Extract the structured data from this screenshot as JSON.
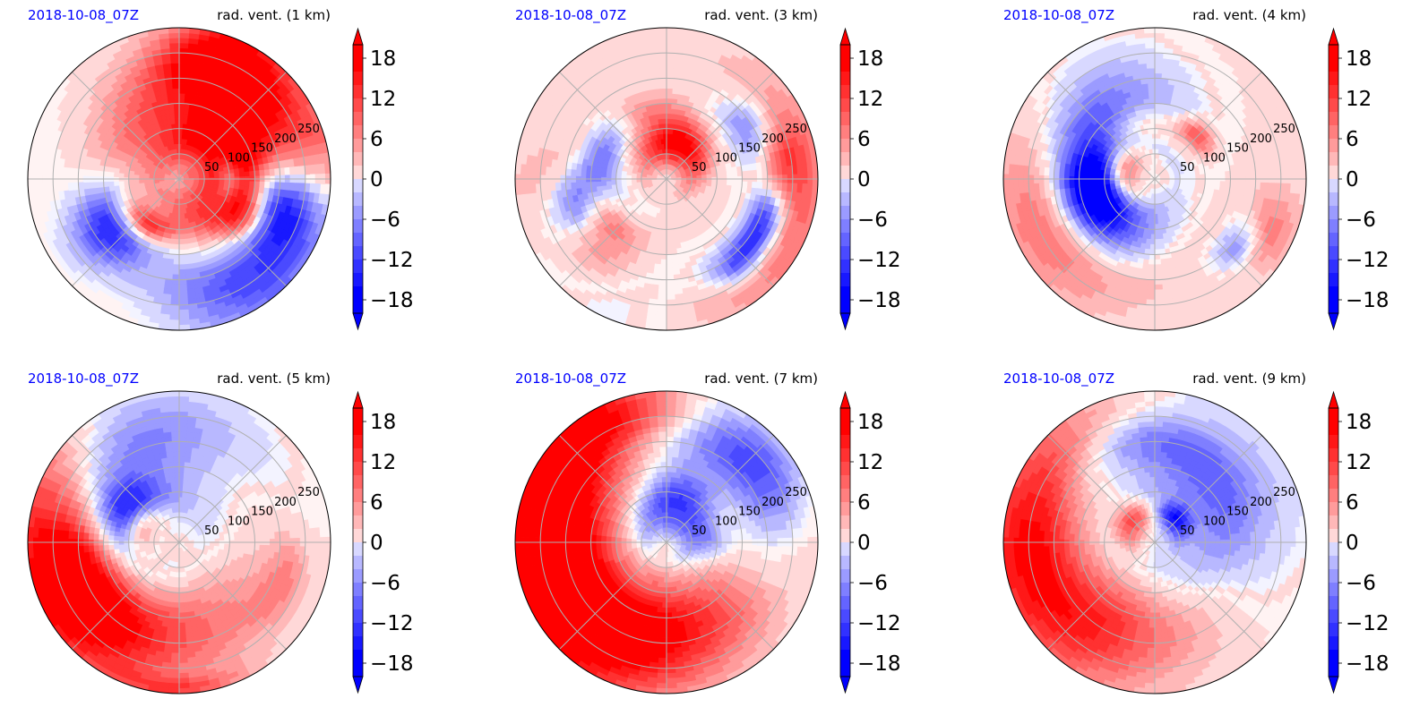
{
  "colors": {
    "date_label": "#0000ff",
    "positive": "#ff0000",
    "negative": "#0000ff",
    "neutral": "#ffffff",
    "grid": "#b0b0b0",
    "border": "#000000"
  },
  "colorbar": {
    "levels": [
      -20,
      -18,
      -16,
      -14,
      -12,
      -10,
      -8,
      -6,
      -4,
      -2,
      0,
      2,
      4,
      6,
      8,
      10,
      12,
      14,
      16,
      18,
      20
    ],
    "ticks": [
      -18,
      -12,
      -6,
      0,
      6,
      12,
      18
    ],
    "tick_labels": [
      "−18",
      "−12",
      "−6",
      "0",
      "6",
      "12",
      "18"
    ],
    "extend": "both"
  },
  "chart_data": [
    {
      "type": "polar-filled-contour",
      "date_label": "2018-10-08_07Z",
      "title": "rad. vent. (1 km)",
      "range_labels": [
        "50",
        "100",
        "150",
        "200",
        "250"
      ],
      "range_rings": [
        50,
        100,
        150,
        200,
        250
      ],
      "rmax": 300,
      "blobs": [
        {
          "az": 55,
          "r": 180,
          "sr": 110,
          "st": 40,
          "v": 18
        },
        {
          "az": 80,
          "r": 110,
          "sr": 45,
          "st": 25,
          "v": 16
        },
        {
          "az": 20,
          "r": 250,
          "sr": 50,
          "st": 10,
          "v": 14
        },
        {
          "az": 135,
          "r": 230,
          "sr": 70,
          "st": 20,
          "v": -18
        },
        {
          "az": 105,
          "r": 200,
          "sr": 60,
          "st": 10,
          "v": -16
        },
        {
          "az": 235,
          "r": 160,
          "sr": 55,
          "st": 12,
          "v": -16
        },
        {
          "az": 232,
          "r": 120,
          "sr": 25,
          "st": 10,
          "v": 10
        },
        {
          "az": 120,
          "r": 150,
          "sr": 30,
          "st": 8,
          "v": 12
        },
        {
          "az": 210,
          "r": 110,
          "sr": 20,
          "st": 10,
          "v": 12
        },
        {
          "az": 90,
          "r": 100,
          "sr": 20,
          "st": 12,
          "v": -14
        },
        {
          "az": 300,
          "r": 150,
          "sr": 160,
          "st": 70,
          "v": -0.8
        }
      ],
      "base": 0.9
    },
    {
      "type": "polar-filled-contour",
      "date_label": "2018-10-08_07Z",
      "title": "rad. vent. (3 km)",
      "range_labels": [
        "50",
        "100",
        "150",
        "200",
        "250"
      ],
      "range_rings": [
        50,
        100,
        150,
        200,
        250
      ],
      "rmax": 300,
      "blobs": [
        {
          "az": 20,
          "r": 70,
          "sr": 30,
          "st": 25,
          "v": 16
        },
        {
          "az": 340,
          "r": 120,
          "sr": 35,
          "st": 20,
          "v": 10
        },
        {
          "az": 255,
          "r": 170,
          "sr": 50,
          "st": 10,
          "v": -16
        },
        {
          "az": 240,
          "r": 140,
          "sr": 30,
          "st": 12,
          "v": 12
        },
        {
          "az": 300,
          "r": 130,
          "sr": 30,
          "st": 15,
          "v": -12
        },
        {
          "az": 105,
          "r": 275,
          "sr": 40,
          "st": 25,
          "v": 8
        },
        {
          "az": 115,
          "r": 210,
          "sr": 25,
          "st": 8,
          "v": -16
        },
        {
          "az": 80,
          "r": 230,
          "sr": 35,
          "st": 8,
          "v": 8
        },
        {
          "az": 60,
          "r": 190,
          "sr": 30,
          "st": 8,
          "v": -10
        },
        {
          "az": 140,
          "r": 220,
          "sr": 25,
          "st": 6,
          "v": -12
        },
        {
          "az": 265,
          "r": 220,
          "sr": 60,
          "st": 10,
          "v": 5
        },
        {
          "az": 225,
          "r": 200,
          "sr": 40,
          "st": 10,
          "v": 6
        },
        {
          "az": 200,
          "r": 250,
          "sr": 60,
          "st": 15,
          "v": -3
        }
      ],
      "base": 1.2
    },
    {
      "type": "polar-filled-contour",
      "date_label": "2018-10-08_07Z",
      "title": "rad. vent. (4 km)",
      "range_labels": [
        "50",
        "100",
        "150",
        "200",
        "250"
      ],
      "range_rings": [
        50,
        100,
        150,
        200,
        250
      ],
      "rmax": 300,
      "blobs": [
        {
          "az": 290,
          "r": 140,
          "sr": 60,
          "st": 30,
          "v": -12
        },
        {
          "az": 260,
          "r": 120,
          "sr": 40,
          "st": 15,
          "v": -16
        },
        {
          "az": 330,
          "r": 200,
          "sr": 60,
          "st": 20,
          "v": -6
        },
        {
          "az": 285,
          "r": 65,
          "sr": 25,
          "st": 18,
          "v": 14
        },
        {
          "az": 345,
          "r": 110,
          "sr": 30,
          "st": 18,
          "v": 8
        },
        {
          "az": 250,
          "r": 240,
          "sr": 60,
          "st": 22,
          "v": 8
        },
        {
          "az": 115,
          "r": 250,
          "sr": 40,
          "st": 8,
          "v": 7
        },
        {
          "az": 130,
          "r": 210,
          "sr": 25,
          "st": 6,
          "v": -10
        },
        {
          "az": 45,
          "r": 120,
          "sr": 20,
          "st": 8,
          "v": 12
        },
        {
          "az": 215,
          "r": 140,
          "sr": 40,
          "st": 15,
          "v": -6
        }
      ],
      "base": 1.2
    },
    {
      "type": "polar-filled-contour",
      "date_label": "2018-10-08_07Z",
      "title": "rad. vent. (5 km)",
      "range_labels": [
        "50",
        "100",
        "150",
        "200",
        "250"
      ],
      "range_rings": [
        50,
        100,
        150,
        200,
        250
      ],
      "rmax": 300,
      "blobs": [
        {
          "az": 268,
          "r": 235,
          "sr": 85,
          "st": 38,
          "v": 20
        },
        {
          "az": 245,
          "r": 200,
          "sr": 60,
          "st": 15,
          "v": 10
        },
        {
          "az": 320,
          "r": 180,
          "sr": 80,
          "st": 25,
          "v": -16
        },
        {
          "az": 300,
          "r": 120,
          "sr": 40,
          "st": 15,
          "v": -14
        },
        {
          "az": 340,
          "r": 250,
          "sr": 60,
          "st": 20,
          "v": -6
        },
        {
          "az": 15,
          "r": 220,
          "sr": 60,
          "st": 25,
          "v": -4
        },
        {
          "az": 290,
          "r": 80,
          "sr": 25,
          "st": 15,
          "v": 12
        },
        {
          "az": 110,
          "r": 220,
          "sr": 30,
          "st": 10,
          "v": 6
        },
        {
          "az": 180,
          "r": 290,
          "sr": 15,
          "st": 10,
          "v": 8
        }
      ],
      "base": 1.0
    },
    {
      "type": "polar-filled-contour",
      "date_label": "2018-10-08_07Z",
      "title": "rad. vent. (7 km)",
      "range_labels": [
        "50",
        "100",
        "150",
        "200",
        "250"
      ],
      "range_rings": [
        50,
        100,
        150,
        200,
        250
      ],
      "rmax": 300,
      "blobs": [
        {
          "az": 290,
          "r": 215,
          "sr": 105,
          "st": 60,
          "v": 22
        },
        {
          "az": 240,
          "r": 230,
          "sr": 80,
          "st": 25,
          "v": 9
        },
        {
          "az": 15,
          "r": 190,
          "sr": 90,
          "st": 30,
          "v": -18
        },
        {
          "az": 50,
          "r": 230,
          "sr": 50,
          "st": 15,
          "v": -12
        },
        {
          "az": 15,
          "r": 80,
          "sr": 45,
          "st": 25,
          "v": -16
        },
        {
          "az": 90,
          "r": 90,
          "sr": 30,
          "st": 10,
          "v": -6
        },
        {
          "az": 330,
          "r": 270,
          "sr": 40,
          "st": 15,
          "v": 8
        }
      ],
      "base": 0.9
    },
    {
      "type": "polar-filled-contour",
      "date_label": "2018-10-08_07Z",
      "title": "rad. vent. (9 km)",
      "range_labels": [
        "50",
        "100",
        "150",
        "200",
        "250"
      ],
      "range_rings": [
        50,
        100,
        150,
        200,
        250
      ],
      "rmax": 300,
      "blobs": [
        {
          "az": 280,
          "r": 230,
          "sr": 90,
          "st": 40,
          "v": 13
        },
        {
          "az": 250,
          "r": 250,
          "sr": 80,
          "st": 25,
          "v": 6
        },
        {
          "az": 25,
          "r": 170,
          "sr": 110,
          "st": 45,
          "v": -8
        },
        {
          "az": 50,
          "r": 140,
          "sr": 60,
          "st": 25,
          "v": -6
        },
        {
          "az": 350,
          "r": 200,
          "sr": 40,
          "st": 20,
          "v": -10
        },
        {
          "az": 315,
          "r": 60,
          "sr": 25,
          "st": 20,
          "v": 14
        },
        {
          "az": 40,
          "r": 60,
          "sr": 20,
          "st": 15,
          "v": -14
        },
        {
          "az": 215,
          "r": 140,
          "sr": 60,
          "st": 15,
          "v": 3
        }
      ],
      "base": 1.0
    }
  ]
}
